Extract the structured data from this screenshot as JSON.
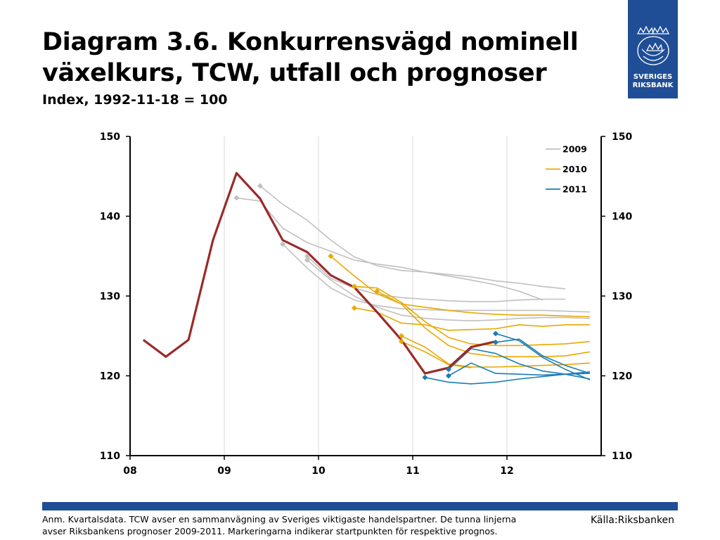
{
  "header": {
    "title": "Diagram 3.6. Konkurrensvägd nominell växelkurs, TCW, utfall och prognoser",
    "subtitle": "Index, 1992-11-18 = 100"
  },
  "logo": {
    "line1": "SVERIGES",
    "line2": "RIKSBANK",
    "icon": "crown-emblem-icon"
  },
  "footer": {
    "note_line1": "Anm. Kvartalsdata. TCW avser en sammanvägning av Sveriges viktigaste handelspartner. De tunna linjerna",
    "note_line2": "avser Riksbankens prognoser 2009-2011. Markeringarna indikerar startpunkten för respektive prognos.",
    "source": "Källa:Riksbanken"
  },
  "colors": {
    "brand": "#1f4e96",
    "outcome": "#9b2a2a",
    "f2009": "#c0c0c0",
    "f2010": "#e8a800",
    "f2011": "#1b7db4",
    "grid": "#d8d8d8"
  },
  "chart_data": {
    "type": "line",
    "ylim": [
      110,
      150
    ],
    "yticks": [
      "110",
      "120",
      "130",
      "140",
      "150"
    ],
    "xlim": [
      2008.0,
      2013.0
    ],
    "xticks": [
      {
        "x": 2008,
        "label": "08"
      },
      {
        "x": 2009,
        "label": "09"
      },
      {
        "x": 2010,
        "label": "10"
      },
      {
        "x": 2011,
        "label": "11"
      },
      {
        "x": 2012,
        "label": "12"
      }
    ],
    "legend": {
      "placement": "top-right",
      "entries": [
        {
          "label": "2009",
          "color": "#c0c0c0"
        },
        {
          "label": "2010",
          "color": "#e8a800"
        },
        {
          "label": "2011",
          "color": "#1b7db4"
        }
      ]
    },
    "outcome": {
      "color": "#9b2a2a",
      "points": [
        [
          2008.14,
          124.5
        ],
        [
          2008.38,
          122.4
        ],
        [
          2008.62,
          124.5
        ],
        [
          2008.88,
          137.0
        ],
        [
          2009.13,
          145.4
        ],
        [
          2009.38,
          142.2
        ],
        [
          2009.62,
          137.0
        ],
        [
          2009.88,
          135.5
        ],
        [
          2010.13,
          132.6
        ],
        [
          2010.38,
          131.1
        ],
        [
          2010.62,
          128.0
        ],
        [
          2010.88,
          124.5
        ],
        [
          2011.13,
          120.3
        ],
        [
          2011.38,
          121.0
        ],
        [
          2011.62,
          123.6
        ],
        [
          2011.88,
          124.3
        ]
      ]
    },
    "forecasts": [
      {
        "group": "2009",
        "color": "#c0c0c0",
        "points": [
          [
            2009.13,
            142.3
          ],
          [
            2009.38,
            141.9
          ],
          [
            2009.62,
            138.5
          ],
          [
            2009.88,
            136.7
          ],
          [
            2010.13,
            135.6
          ],
          [
            2010.38,
            134.5
          ],
          [
            2010.62,
            134.0
          ],
          [
            2010.88,
            133.6
          ],
          [
            2011.13,
            133.0
          ],
          [
            2011.38,
            132.5
          ],
          [
            2011.62,
            132.0
          ],
          [
            2011.88,
            131.4
          ],
          [
            2012.13,
            130.6
          ],
          [
            2012.38,
            129.5
          ]
        ]
      },
      {
        "group": "2009",
        "color": "#c0c0c0",
        "points": [
          [
            2009.38,
            143.8
          ],
          [
            2009.62,
            141.5
          ],
          [
            2009.88,
            139.5
          ],
          [
            2010.13,
            137.0
          ],
          [
            2010.38,
            134.9
          ],
          [
            2010.62,
            133.8
          ],
          [
            2010.88,
            133.2
          ],
          [
            2011.13,
            133.0
          ],
          [
            2011.38,
            132.7
          ],
          [
            2011.62,
            132.4
          ],
          [
            2011.88,
            131.9
          ],
          [
            2012.13,
            131.6
          ],
          [
            2012.38,
            131.2
          ],
          [
            2012.62,
            130.9
          ]
        ]
      },
      {
        "group": "2009",
        "color": "#c0c0c0",
        "points": [
          [
            2009.62,
            136.5
          ],
          [
            2009.88,
            133.5
          ],
          [
            2010.13,
            131.0
          ],
          [
            2010.38,
            129.5
          ],
          [
            2010.62,
            128.8
          ],
          [
            2010.88,
            128.4
          ],
          [
            2011.13,
            128.3
          ],
          [
            2011.38,
            128.2
          ],
          [
            2011.62,
            128.2
          ],
          [
            2011.88,
            128.2
          ],
          [
            2012.13,
            128.2
          ],
          [
            2012.38,
            128.2
          ],
          [
            2012.62,
            128.1
          ],
          [
            2012.88,
            128.0
          ]
        ]
      },
      {
        "group": "2009",
        "color": "#c0c0c0",
        "points": [
          [
            2009.88,
            135.0
          ],
          [
            2010.13,
            132.2
          ],
          [
            2010.38,
            131.0
          ],
          [
            2010.62,
            130.2
          ],
          [
            2010.88,
            129.8
          ],
          [
            2011.13,
            129.6
          ],
          [
            2011.38,
            129.4
          ],
          [
            2011.62,
            129.3
          ],
          [
            2011.88,
            129.3
          ],
          [
            2012.13,
            129.5
          ],
          [
            2012.38,
            129.6
          ],
          [
            2012.62,
            129.6
          ]
        ]
      },
      {
        "group": "2009",
        "color": "#c0c0c0",
        "points": [
          [
            2009.88,
            134.5
          ],
          [
            2010.13,
            132.0
          ],
          [
            2010.38,
            130.0
          ],
          [
            2010.62,
            128.6
          ],
          [
            2010.88,
            127.6
          ],
          [
            2011.13,
            127.2
          ],
          [
            2011.38,
            127.0
          ],
          [
            2011.62,
            126.9
          ],
          [
            2011.88,
            127.0
          ],
          [
            2012.13,
            127.2
          ],
          [
            2012.38,
            127.3
          ],
          [
            2012.62,
            127.3
          ],
          [
            2012.88,
            127.2
          ]
        ]
      },
      {
        "group": "2010",
        "color": "#e8a800",
        "points": [
          [
            2010.13,
            135.0
          ],
          [
            2010.38,
            132.5
          ],
          [
            2010.62,
            130.3
          ],
          [
            2010.88,
            129.0
          ],
          [
            2011.13,
            128.6
          ],
          [
            2011.38,
            128.2
          ],
          [
            2011.62,
            127.9
          ],
          [
            2011.88,
            127.7
          ],
          [
            2012.13,
            127.6
          ],
          [
            2012.38,
            127.6
          ],
          [
            2012.62,
            127.5
          ],
          [
            2012.88,
            127.4
          ]
        ]
      },
      {
        "group": "2010",
        "color": "#e8a800",
        "points": [
          [
            2010.38,
            131.2
          ],
          [
            2010.62,
            131.0
          ],
          [
            2010.88,
            129.2
          ],
          [
            2011.13,
            126.8
          ],
          [
            2011.38,
            124.8
          ],
          [
            2011.62,
            124.0
          ],
          [
            2011.88,
            123.8
          ],
          [
            2012.13,
            123.8
          ],
          [
            2012.38,
            123.9
          ],
          [
            2012.62,
            124.0
          ],
          [
            2012.88,
            124.3
          ]
        ]
      },
      {
        "group": "2010",
        "color": "#e8a800",
        "points": [
          [
            2010.38,
            128.5
          ],
          [
            2010.62,
            128.0
          ],
          [
            2010.88,
            126.6
          ],
          [
            2011.13,
            126.4
          ],
          [
            2011.38,
            125.7
          ],
          [
            2011.62,
            125.8
          ],
          [
            2011.88,
            125.9
          ],
          [
            2012.13,
            126.4
          ],
          [
            2012.38,
            126.2
          ],
          [
            2012.62,
            126.4
          ],
          [
            2012.88,
            126.4
          ]
        ]
      },
      {
        "group": "2010",
        "color": "#e8a800",
        "points": [
          [
            2010.62,
            130.6
          ],
          [
            2010.88,
            129.0
          ],
          [
            2011.13,
            126.0
          ],
          [
            2011.38,
            123.8
          ],
          [
            2011.62,
            122.8
          ],
          [
            2011.88,
            122.4
          ],
          [
            2012.13,
            122.4
          ],
          [
            2012.38,
            122.4
          ],
          [
            2012.62,
            122.5
          ],
          [
            2012.88,
            123.0
          ]
        ]
      },
      {
        "group": "2010",
        "color": "#e8a800",
        "points": [
          [
            2010.88,
            125.0
          ],
          [
            2011.13,
            123.6
          ],
          [
            2011.38,
            121.5
          ],
          [
            2011.62,
            121.1
          ],
          [
            2011.88,
            121.1
          ],
          [
            2012.13,
            121.2
          ],
          [
            2012.38,
            121.3
          ],
          [
            2012.62,
            121.4
          ],
          [
            2012.88,
            121.6
          ]
        ]
      },
      {
        "group": "2010",
        "color": "#e8a800",
        "points": [
          [
            2010.88,
            124.3
          ],
          [
            2011.13,
            123.0
          ],
          [
            2011.38,
            121.4
          ],
          [
            2011.62,
            121.0
          ]
        ]
      },
      {
        "group": "2011",
        "color": "#1b7db4",
        "points": [
          [
            2011.13,
            119.8
          ],
          [
            2011.38,
            119.2
          ],
          [
            2011.62,
            119.0
          ],
          [
            2011.88,
            119.2
          ],
          [
            2012.13,
            119.6
          ],
          [
            2012.38,
            119.9
          ],
          [
            2012.62,
            120.2
          ],
          [
            2012.88,
            120.5
          ]
        ]
      },
      {
        "group": "2011",
        "color": "#1b7db4",
        "points": [
          [
            2011.38,
            120.0
          ],
          [
            2011.62,
            121.6
          ],
          [
            2011.88,
            120.3
          ],
          [
            2012.13,
            120.2
          ],
          [
            2012.38,
            120.1
          ],
          [
            2012.62,
            120.2
          ],
          [
            2012.88,
            120.3
          ]
        ]
      },
      {
        "group": "2011",
        "color": "#1b7db4",
        "points": [
          [
            2011.38,
            120.8
          ],
          [
            2011.62,
            123.4
          ],
          [
            2011.88,
            122.8
          ],
          [
            2012.13,
            121.5
          ],
          [
            2012.38,
            120.6
          ],
          [
            2012.62,
            120.2
          ],
          [
            2012.88,
            119.6
          ]
        ]
      },
      {
        "group": "2011",
        "color": "#1b7db4",
        "points": [
          [
            2011.88,
            125.3
          ],
          [
            2012.13,
            124.4
          ],
          [
            2012.38,
            122.3
          ],
          [
            2012.62,
            120.8
          ],
          [
            2012.88,
            119.5
          ]
        ]
      },
      {
        "group": "2011",
        "color": "#1b7db4",
        "points": [
          [
            2011.88,
            124.2
          ],
          [
            2012.13,
            124.6
          ],
          [
            2012.38,
            122.5
          ],
          [
            2012.62,
            121.3
          ],
          [
            2012.88,
            120.3
          ]
        ]
      }
    ]
  }
}
